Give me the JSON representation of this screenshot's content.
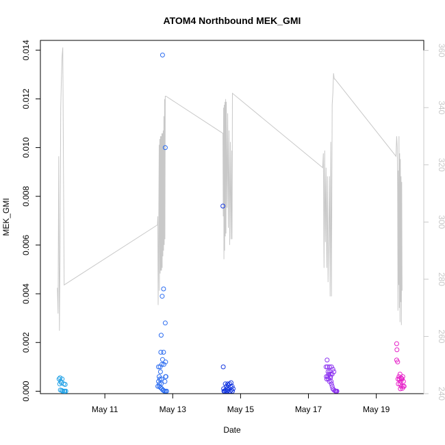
{
  "chart_data": {
    "type": "scatter",
    "title": "ATOM4 Northbound MEK_GMI",
    "xlabel": "Date",
    "ylabel": "MEK_GMI",
    "x_ticks": [
      "May 11",
      "May 13",
      "May 15",
      "May 17",
      "May 19"
    ],
    "x_tick_days": [
      11,
      13,
      15,
      17,
      19
    ],
    "xlim_days": [
      9.1,
      20.4
    ],
    "y_ticks": [
      "0.000",
      "0.002",
      "0.004",
      "0.006",
      "0.008",
      "0.010",
      "0.012",
      "0.014"
    ],
    "ylim": [
      -0.0001,
      0.0144
    ],
    "y2_ticks": [
      "240",
      "260",
      "280",
      "300",
      "320",
      "340",
      "360"
    ],
    "y2lim": [
      240,
      363.5
    ],
    "grid": false,
    "line_color": "#c8c8c8",
    "series": [
      {
        "color": "#1ea0e6",
        "points": [
          [
            9.65,
            0.0005
          ],
          [
            9.68,
            0.00055
          ],
          [
            9.7,
            0.0004
          ],
          [
            9.72,
            0.00035
          ],
          [
            9.74,
            0.0005
          ],
          [
            9.67,
            0.0003
          ],
          [
            9.69,
            5e-05
          ],
          [
            9.73,
            3e-05
          ],
          [
            9.76,
            0.0
          ],
          [
            9.8,
            0.0
          ],
          [
            9.82,
            0.0
          ],
          [
            9.79,
            0.0003
          ],
          [
            9.83,
            0.00028
          ],
          [
            9.85,
            0.0
          ]
        ]
      },
      {
        "color": "#2a6bf0",
        "points": [
          [
            12.7,
            0.0138
          ],
          [
            12.78,
            0.01
          ],
          [
            12.73,
            0.0042
          ],
          [
            12.69,
            0.0039
          ],
          [
            12.78,
            0.0028
          ],
          [
            12.66,
            0.0023
          ],
          [
            12.65,
            0.0016
          ],
          [
            12.73,
            0.0016
          ],
          [
            12.7,
            0.0013
          ],
          [
            12.79,
            0.0012
          ],
          [
            12.58,
            0.001
          ],
          [
            12.63,
            0.001
          ],
          [
            12.68,
            0.0011
          ],
          [
            12.74,
            0.0011
          ],
          [
            12.64,
            0.0008
          ],
          [
            12.6,
            0.0006
          ],
          [
            12.62,
            0.0005
          ],
          [
            12.67,
            0.0005
          ],
          [
            12.79,
            0.0006
          ],
          [
            12.8,
            0.0006
          ],
          [
            12.58,
            0.0004
          ],
          [
            12.61,
            0.0003
          ],
          [
            12.66,
            0.0003
          ],
          [
            12.77,
            0.0004
          ],
          [
            12.56,
            0.0002
          ],
          [
            12.6,
            0.0002
          ],
          [
            12.64,
            0.00015
          ],
          [
            12.68,
            0.0001
          ],
          [
            12.71,
            5e-05
          ],
          [
            12.73,
            3e-05
          ],
          [
            12.76,
            0.0
          ],
          [
            12.79,
            0.0
          ],
          [
            12.82,
            0.0
          ]
        ]
      },
      {
        "color": "#1436e0",
        "points": [
          [
            14.48,
            0.0076
          ],
          [
            14.49,
            0.001
          ],
          [
            14.55,
            0.0003
          ],
          [
            14.62,
            0.0003
          ],
          [
            14.68,
            0.0003
          ],
          [
            14.72,
            0.00035
          ],
          [
            14.58,
            0.0002
          ],
          [
            14.64,
            0.00025
          ],
          [
            14.7,
            0.0002
          ],
          [
            14.75,
            0.0002
          ],
          [
            14.5,
            0.0001
          ],
          [
            14.53,
            0.0
          ],
          [
            14.56,
            5e-05
          ],
          [
            14.6,
            0.0001
          ],
          [
            14.63,
            5e-05
          ],
          [
            14.66,
            0.0001
          ],
          [
            14.69,
            0.0
          ],
          [
            14.73,
            5e-05
          ],
          [
            14.76,
            0.0
          ],
          [
            14.78,
            0.0001
          ],
          [
            14.51,
            0.0
          ],
          [
            14.57,
            0.0
          ],
          [
            14.61,
            0.0
          ]
        ]
      },
      {
        "color": "#8c32f0",
        "points": [
          [
            17.55,
            0.00128
          ],
          [
            17.52,
            0.001
          ],
          [
            17.56,
            0.001
          ],
          [
            17.62,
            0.001
          ],
          [
            17.68,
            0.001
          ],
          [
            17.72,
            0.0009
          ],
          [
            17.58,
            0.0008
          ],
          [
            17.63,
            0.0008
          ],
          [
            17.75,
            0.0008
          ],
          [
            17.6,
            0.0007
          ],
          [
            17.66,
            0.0007
          ],
          [
            17.7,
            0.0007
          ],
          [
            17.53,
            0.0006
          ],
          [
            17.57,
            0.0006
          ],
          [
            17.64,
            0.0006
          ],
          [
            17.54,
            0.0005
          ],
          [
            17.59,
            0.0005
          ],
          [
            17.65,
            0.00055
          ],
          [
            17.62,
            0.0004
          ],
          [
            17.67,
            0.0004
          ],
          [
            17.68,
            0.0003
          ],
          [
            17.7,
            0.0002
          ],
          [
            17.72,
            0.0001
          ],
          [
            17.75,
            5e-05
          ],
          [
            17.78,
            2e-05
          ],
          [
            17.8,
            0.0
          ],
          [
            17.82,
            0.0
          ],
          [
            17.84,
            0.0
          ]
        ]
      },
      {
        "color": "#e61ec8",
        "points": [
          [
            19.6,
            0.00195
          ],
          [
            19.61,
            0.0017
          ],
          [
            19.6,
            0.00128
          ],
          [
            19.63,
            0.0012
          ],
          [
            19.7,
            0.0007
          ],
          [
            19.67,
            0.0006
          ],
          [
            19.73,
            0.00055
          ],
          [
            19.78,
            0.0006
          ],
          [
            19.64,
            0.0005
          ],
          [
            19.68,
            0.0005
          ],
          [
            19.72,
            0.0004
          ],
          [
            19.76,
            0.0005
          ],
          [
            19.8,
            0.0004
          ],
          [
            19.65,
            0.0003
          ],
          [
            19.7,
            0.0003
          ],
          [
            19.74,
            0.0002
          ],
          [
            19.79,
            0.0002
          ],
          [
            19.82,
            0.0002
          ],
          [
            19.71,
            0.0001
          ],
          [
            19.77,
            0.00012
          ],
          [
            19.75,
            0.0005
          ]
        ]
      }
    ],
    "line_secondary": [
      [
        9.6,
        277
      ],
      [
        9.62,
        268
      ],
      [
        9.64,
        323
      ],
      [
        9.66,
        262
      ],
      [
        9.68,
        288
      ],
      [
        9.7,
        340
      ],
      [
        9.72,
        350
      ],
      [
        9.74,
        358
      ],
      [
        9.76,
        361
      ],
      [
        9.8,
        278
      ],
      [
        12.55,
        299
      ],
      [
        12.56,
        302
      ],
      [
        12.57,
        271
      ],
      [
        12.58,
        284
      ],
      [
        12.6,
        327
      ],
      [
        12.61,
        276
      ],
      [
        12.62,
        329
      ],
      [
        12.63,
        282
      ],
      [
        12.64,
        330
      ],
      [
        12.65,
        283
      ],
      [
        12.66,
        330
      ],
      [
        12.67,
        283
      ],
      [
        12.68,
        331
      ],
      [
        12.69,
        284
      ],
      [
        12.7,
        331
      ],
      [
        12.71,
        288
      ],
      [
        12.72,
        332
      ],
      [
        12.73,
        290
      ],
      [
        12.74,
        337
      ],
      [
        12.75,
        292
      ],
      [
        12.76,
        343
      ],
      [
        12.77,
        294
      ],
      [
        12.78,
        344
      ],
      [
        12.8,
        344
      ],
      [
        14.48,
        331
      ],
      [
        14.49,
        302
      ],
      [
        14.5,
        340
      ],
      [
        14.51,
        287
      ],
      [
        14.52,
        341
      ],
      [
        14.53,
        290
      ],
      [
        14.54,
        342
      ],
      [
        14.55,
        295
      ],
      [
        14.56,
        343
      ],
      [
        14.57,
        296
      ],
      [
        14.58,
        342
      ],
      [
        14.6,
        305
      ],
      [
        14.62,
        338
      ],
      [
        14.64,
        298
      ],
      [
        14.66,
        332
      ],
      [
        14.68,
        292
      ],
      [
        14.7,
        328
      ],
      [
        14.72,
        294
      ],
      [
        14.74,
        325
      ],
      [
        14.75,
        294
      ],
      [
        14.76,
        345
      ],
      [
        17.42,
        319
      ],
      [
        17.44,
        324
      ],
      [
        17.46,
        284
      ],
      [
        17.48,
        325
      ],
      [
        17.5,
        293
      ],
      [
        17.52,
        319
      ],
      [
        17.54,
        284
      ],
      [
        17.56,
        316
      ],
      [
        17.58,
        279
      ],
      [
        17.6,
        294
      ],
      [
        17.62,
        316
      ],
      [
        17.64,
        274
      ],
      [
        17.66,
        328
      ],
      [
        17.68,
        274
      ],
      [
        17.7,
        341
      ],
      [
        17.72,
        345
      ],
      [
        17.74,
        352
      ],
      [
        17.76,
        350
      ],
      [
        17.78,
        350
      ],
      [
        19.58,
        323
      ],
      [
        19.6,
        330
      ],
      [
        19.62,
        326
      ],
      [
        19.63,
        311
      ],
      [
        19.64,
        269
      ],
      [
        19.65,
        318
      ],
      [
        19.66,
        278
      ],
      [
        19.67,
        330
      ],
      [
        19.68,
        270
      ],
      [
        19.69,
        324
      ],
      [
        19.7,
        265
      ],
      [
        19.71,
        322
      ],
      [
        19.72,
        272
      ],
      [
        19.73,
        316
      ],
      [
        19.74,
        264
      ],
      [
        19.75,
        314
      ],
      [
        19.76,
        276
      ]
    ]
  }
}
